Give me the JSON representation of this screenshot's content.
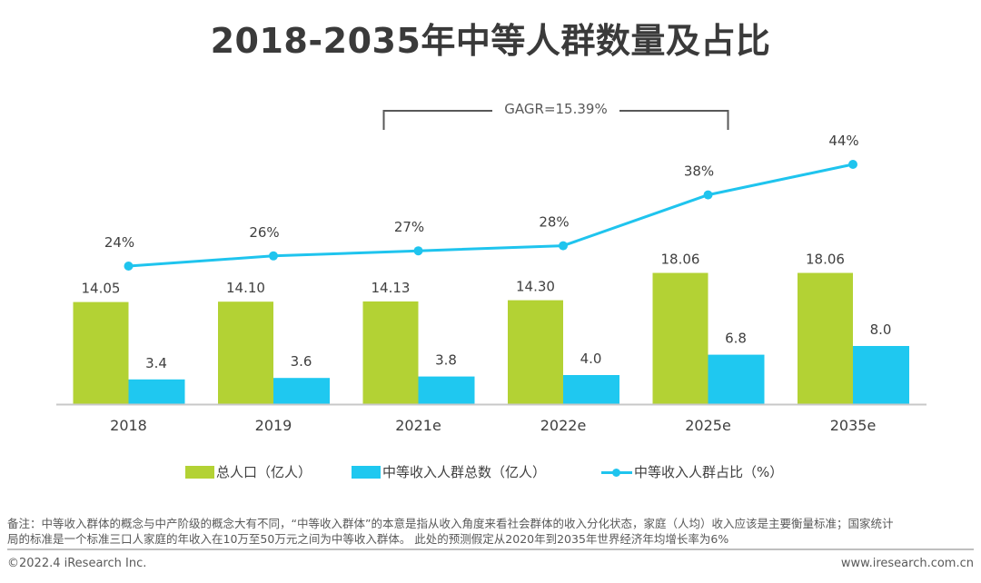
{
  "title": "2018-2035年中等人群数量及占比",
  "chart_data": {
    "type": "bar",
    "title": "2018-2035年中等人群数量及占比",
    "categories": [
      "2018",
      "2019",
      "2021e",
      "2022e",
      "2025e",
      "2035e"
    ],
    "series": [
      {
        "name": "总人口（亿人）",
        "type": "bar",
        "color": "#b3d234",
        "values": [
          14.05,
          14.1,
          14.13,
          14.3,
          18.06,
          18.06
        ],
        "labels": [
          "14.05",
          "14.10",
          "14.13",
          "14.30",
          "18.06",
          "18.06"
        ]
      },
      {
        "name": "中等收入人群总数（亿人）",
        "type": "bar",
        "color": "#1fc8f0",
        "values": [
          3.4,
          3.6,
          3.8,
          4.0,
          6.8,
          8.0
        ],
        "labels": [
          "3.4",
          "3.6",
          "3.8",
          "4.0",
          "6.8",
          "8.0"
        ]
      },
      {
        "name": "中等收入人群占比（%）",
        "type": "line",
        "color": "#1fc4ee",
        "axis": "secondary",
        "values": [
          24,
          26,
          27,
          28,
          38,
          44
        ],
        "labels": [
          "24%",
          "26%",
          "27%",
          "28%",
          "38%",
          "44%"
        ]
      }
    ],
    "xlabel": "",
    "ylabel": "",
    "ylim": [
      0,
      20
    ],
    "y2lim": [
      0,
      50
    ],
    "grid": false,
    "legend": "bottom",
    "annotations": [
      {
        "text": "GAGR=15.39%",
        "type": "bracket",
        "from": "2021e",
        "to": "2025e"
      }
    ]
  },
  "footnote": {
    "line1": "备注：中等收入群体的概念与中产阶级的概念大有不同，“中等收入群体”的本意是指从收入角度来看社会群体的收入分化状态，家庭（人均）收入应该是主要衡量标准；国家统计",
    "line2": "局的标准是一个标准三口人家庭的年收入在10万至50万元之间为中等收入群体。 此处的预测假定从2020年到2035年世界经济年均增长率为6%"
  },
  "footer": {
    "copyright": "©2022.4 iResearch Inc.",
    "website": "www.iresearch.com.cn"
  }
}
